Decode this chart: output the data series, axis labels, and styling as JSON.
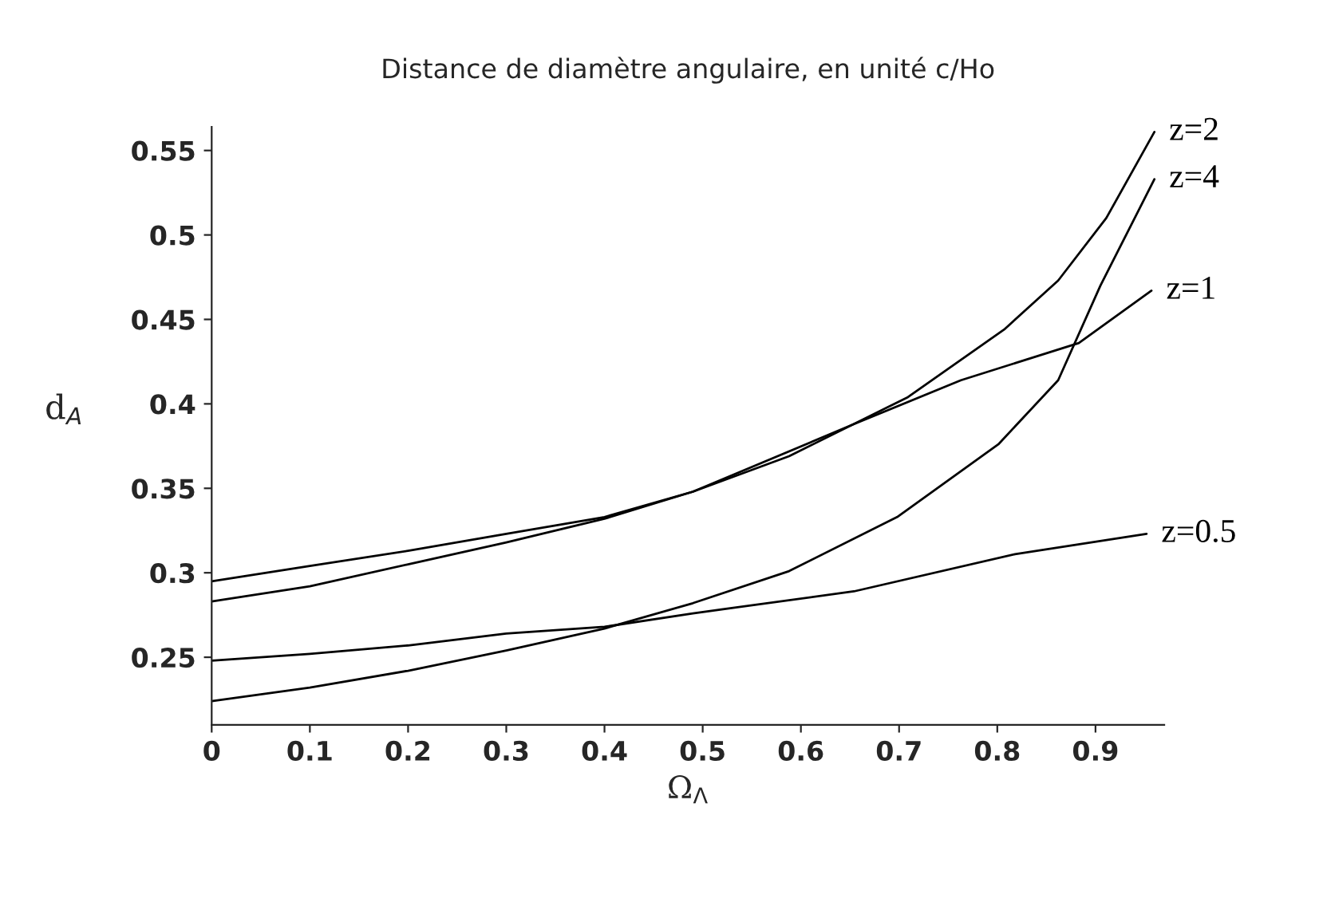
{
  "chart_data": {
    "type": "line",
    "title": "Distance de diamètre angulaire, en unité c/Ho",
    "xlabel": "Ω$_{Λ}$",
    "ylabel": "d$_{A}$",
    "xlim": [
      0,
      0.97
    ],
    "ylim": [
      0.21,
      0.564
    ],
    "xticks": [
      {
        "value": 0,
        "label": "0"
      },
      0.1,
      0.2,
      0.3,
      0.4,
      0.5,
      0.6,
      0.7,
      0.8,
      0.9
    ],
    "yticks": [
      0.25,
      0.3,
      0.35,
      0.4,
      0.45,
      0.5,
      0.55
    ],
    "grid": false,
    "legend": false,
    "line_style": "solid",
    "marker": "none",
    "series": [
      {
        "name": "z=2",
        "color": "#000000",
        "x": [
          0,
          0.1,
          0.2,
          0.3,
          0.4,
          0.49,
          0.588,
          0.709,
          0.807,
          0.862,
          0.911,
          0.96
        ],
        "values": [
          0.283,
          0.292,
          0.305,
          0.318,
          0.332,
          0.348,
          0.369,
          0.404,
          0.444,
          0.473,
          0.51,
          0.561
        ]
      },
      {
        "name": "z=4",
        "color": "#000000",
        "x": [
          0,
          0.1,
          0.2,
          0.3,
          0.4,
          0.49,
          0.588,
          0.698,
          0.801,
          0.862,
          0.905,
          0.96
        ],
        "values": [
          0.224,
          0.232,
          0.242,
          0.254,
          0.267,
          0.282,
          0.301,
          0.333,
          0.376,
          0.414,
          0.47,
          0.533
        ]
      },
      {
        "name": "z=1",
        "color": "#000000",
        "x": [
          0,
          0.1,
          0.2,
          0.3,
          0.4,
          0.49,
          0.654,
          0.763,
          0.883,
          0.957
        ],
        "values": [
          0.295,
          0.304,
          0.313,
          0.323,
          0.333,
          0.348,
          0.388,
          0.414,
          0.436,
          0.467
        ]
      },
      {
        "name": "z=0.5",
        "color": "#000000",
        "x": [
          0,
          0.1,
          0.2,
          0.3,
          0.4,
          0.49,
          0.654,
          0.818,
          0.952
        ],
        "values": [
          0.248,
          0.252,
          0.257,
          0.264,
          0.268,
          0.276,
          0.289,
          0.311,
          0.323
        ]
      }
    ]
  }
}
